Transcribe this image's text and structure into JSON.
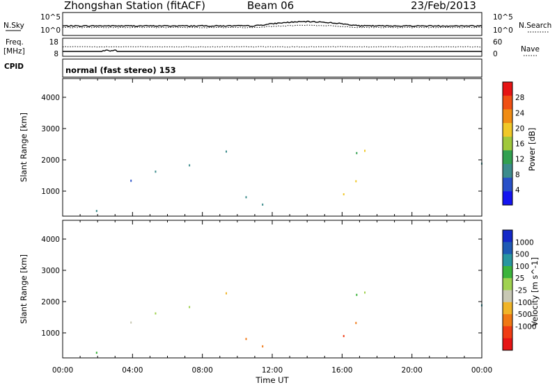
{
  "header": {
    "station": "Zhongshan Station (fitACF)",
    "beam": "Beam 06",
    "date": "23/Feb/2013"
  },
  "noise_panel": {
    "left_label": "N.Sky",
    "right_label": "N.Search",
    "ticks_left": [
      "10^5",
      "10^0"
    ],
    "ticks_right": [
      "10^5",
      "10^0"
    ]
  },
  "freq_panel": {
    "left_label_1": "Freq.",
    "left_label_2": "[MHz]",
    "right_label": "Nave",
    "ticks_left": [
      "18",
      "8"
    ],
    "ticks_right": [
      "60",
      "0"
    ]
  },
  "cpid_panel": {
    "label": "CPID",
    "value": "normal (fast stereo) 153"
  },
  "colors": {
    "power_scale": [
      "#1414f0",
      "#2850c8",
      "#3c8c8c",
      "#32a050",
      "#a0c83c",
      "#f0c828",
      "#f08c14",
      "#f05014",
      "#e61414"
    ],
    "velocity_scale": [
      "#1428c8",
      "#1e5ab4",
      "#2896a0",
      "#3cb43c",
      "#a0d250",
      "#c8c8b4",
      "#f0b428",
      "#f07814",
      "#f03c14",
      "#e61414"
    ]
  },
  "chart_data": [
    {
      "type": "heatmap",
      "name": "power",
      "ylabel": "Slant Range [km]",
      "y_ticks": [
        "1000",
        "2000",
        "3000",
        "4000"
      ],
      "ylim": [
        200,
        4600
      ],
      "x_ticks": [
        "00:00",
        "04:00",
        "08:00",
        "12:00",
        "16:00",
        "20:00",
        "00:00"
      ],
      "xlim_hours": [
        0,
        24
      ],
      "colorbar_label": "Power [dB]",
      "colorbar_ticks": [
        "4",
        "8",
        "12",
        "16",
        "20",
        "24",
        "28"
      ],
      "colorbar_range": [
        0,
        32
      ]
    },
    {
      "type": "heatmap",
      "name": "velocity",
      "ylabel": "Slant Range [km]",
      "y_ticks": [
        "1000",
        "2000",
        "3000",
        "4000"
      ],
      "ylim": [
        200,
        4600
      ],
      "x_ticks": [
        "00:00",
        "04:00",
        "08:00",
        "12:00",
        "16:00",
        "20:00",
        "00:00"
      ],
      "xlim_hours": [
        0,
        24
      ],
      "xlabel": "Time UT",
      "colorbar_label": "Velocity [m s^-1]",
      "colorbar_ticks": [
        "1000",
        "500",
        "100",
        "25",
        "-25",
        "-100",
        "-500",
        "-1000"
      ],
      "colorbar_range": [
        -1200,
        1200
      ]
    }
  ]
}
